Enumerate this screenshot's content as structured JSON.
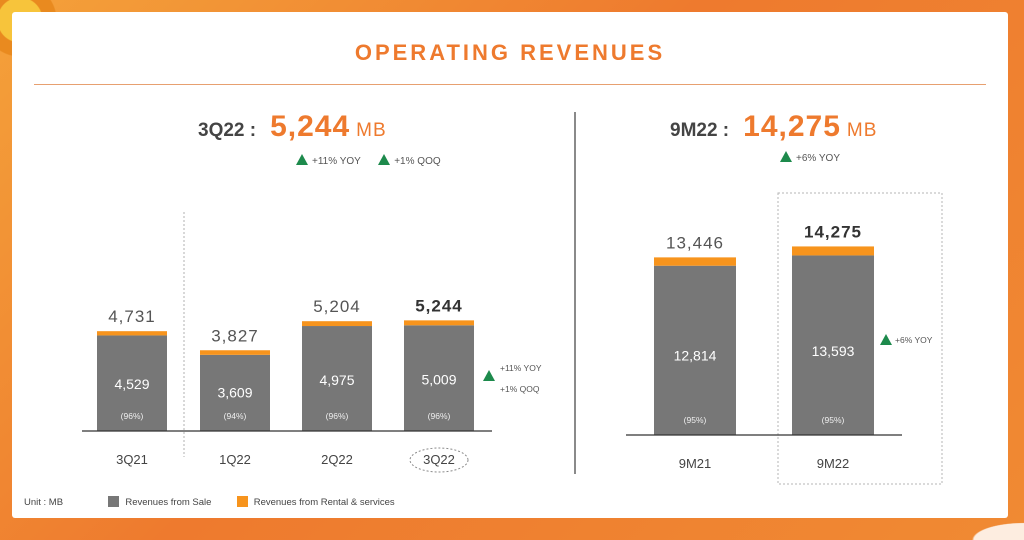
{
  "title": "OPERATING REVENUES",
  "left_header": {
    "period": "3Q22 :",
    "value": "5,244",
    "unit": "MB",
    "growth": [
      "+11% YOY",
      "+1% QOQ"
    ]
  },
  "right_header": {
    "period": "9M22 :",
    "value": "14,275",
    "unit": "MB",
    "growth": [
      "+6% YOY"
    ]
  },
  "chart_data": [
    {
      "type": "bar",
      "stacked": true,
      "categories": [
        "3Q21",
        "1Q22",
        "2Q22",
        "3Q22"
      ],
      "totals": [
        "4,731",
        "3,827",
        "5,204",
        "5,244"
      ],
      "total_values": [
        4731,
        3827,
        5204,
        5244
      ],
      "series": [
        {
          "name": "Revenues from Sale",
          "values": [
            4529,
            3609,
            4975,
            5009
          ],
          "labels": [
            "4,529",
            "3,609",
            "4,975",
            "5,009"
          ],
          "shares": [
            "(96%)",
            "(94%)",
            "(96%)",
            "(96%)"
          ]
        },
        {
          "name": "Revenues from Rental & services",
          "values": [
            202,
            218,
            229,
            235
          ]
        }
      ],
      "annotations": [
        "+11% YOY",
        "+1% QOQ"
      ],
      "highlight": "3Q22"
    },
    {
      "type": "bar",
      "stacked": true,
      "categories": [
        "9M21",
        "9M22"
      ],
      "totals": [
        "13,446",
        "14,275"
      ],
      "total_values": [
        13446,
        14275
      ],
      "series": [
        {
          "name": "Revenues from Sale",
          "values": [
            12814,
            13593
          ],
          "labels": [
            "12,814",
            "13,593"
          ],
          "shares": [
            "(95%)",
            "(95%)"
          ]
        },
        {
          "name": "Revenues from Rental & services",
          "values": [
            632,
            682
          ]
        }
      ],
      "annotations": [
        "+6% YOY"
      ],
      "highlight": "9M22"
    }
  ],
  "legend": {
    "unit": "Unit : MB",
    "sale": "Revenues from Sale",
    "rental": "Revenues from Rental & services"
  },
  "colors": {
    "sale": "#777777",
    "rental": "#f7941d",
    "accent": "#ee7a2e",
    "up": "#1d8a4c"
  }
}
